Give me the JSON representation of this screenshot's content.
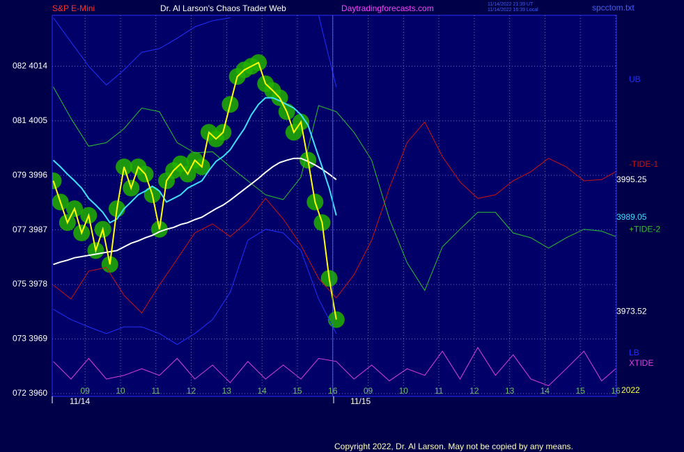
{
  "chart_data": {
    "type": "line",
    "symbol": "S&P E-Mini",
    "title": "Dr. Al Larson's Chaos Trader Web",
    "site": "Daytradingforecasts.com",
    "timestamps": [
      "11/14/2022 21:39 UT",
      "11/14/2022 16:39 Local"
    ],
    "file": "spcctom.txt",
    "dates": [
      "11/14",
      "11/15"
    ],
    "year": "2022",
    "copyright": "Copyright 2022, Dr. Al Larson. May not be copied by any means.",
    "xlim": [
      -0.93,
      15.02
    ],
    "ylim": [
      3960,
      4022.4
    ],
    "xticks": [
      {
        "value": 0,
        "label": "09"
      },
      {
        "value": 1,
        "label": "10"
      },
      {
        "value": 2,
        "label": "11"
      },
      {
        "value": 3,
        "label": "12"
      },
      {
        "value": 4,
        "label": "13"
      },
      {
        "value": 5,
        "label": "14"
      },
      {
        "value": 6,
        "label": "15"
      },
      {
        "value": 7,
        "label": "16"
      },
      {
        "value": 8,
        "label": "09"
      },
      {
        "value": 9,
        "label": "10"
      },
      {
        "value": 10,
        "label": "11"
      },
      {
        "value": 11,
        "label": "12"
      },
      {
        "value": 12,
        "label": "13"
      },
      {
        "value": 13,
        "label": "14"
      },
      {
        "value": 14,
        "label": "15"
      },
      {
        "value": 15,
        "label": "16"
      }
    ],
    "yticks": [
      {
        "value": 3960,
        "label": "072 3960"
      },
      {
        "value": 3969,
        "label": "073 3969"
      },
      {
        "value": 3978,
        "label": "075 3978"
      },
      {
        "value": 3987,
        "label": "077 3987"
      },
      {
        "value": 3996,
        "label": "079 3996"
      },
      {
        "value": 4005,
        "label": "081 4005"
      },
      {
        "value": 4014,
        "label": "082 4014"
      }
    ],
    "grid": true,
    "marker_color": "#22b000",
    "last_values": [
      3995.25,
      3989.05,
      3973.52
    ],
    "last_value_colors": [
      "#ffffff",
      "#40e0ff",
      "#ffffff"
    ],
    "series": [
      {
        "color": "#ffff00",
        "x": [
          -0.9,
          -0.7,
          -0.5,
          -0.3,
          -0.1,
          0.1,
          0.3,
          0.5,
          0.7,
          0.9,
          1.1,
          1.3,
          1.5,
          1.7,
          1.9,
          2.1,
          2.3,
          2.5,
          2.7,
          2.9,
          3.1,
          3.3,
          3.5,
          3.7,
          3.9,
          4.1,
          4.3,
          4.5,
          4.7,
          4.9,
          5.1,
          5.3,
          5.5,
          5.7,
          5.9,
          6.1,
          6.3,
          6.5,
          6.7,
          6.9,
          7.1
        ],
        "values": [
          3995.1,
          3991.6,
          3988.2,
          3990.5,
          3986.5,
          3989.4,
          3983.6,
          3987.1,
          3981.3,
          3990.5,
          3997.4,
          3993.9,
          3997.4,
          3996.2,
          3992.8,
          3987.1,
          3995.1,
          3996.8,
          3997.9,
          3996.2,
          3998.5,
          3997.4,
          4003.1,
          4002.0,
          4003.1,
          4007.7,
          4012.3,
          4013.4,
          4014.0,
          4014.6,
          4011.1,
          4010.0,
          4008.8,
          4006.5,
          4003.1,
          4004.8,
          3998.5,
          3991.6,
          3988.2,
          3979.0,
          3972.2
        ]
      },
      {
        "color": "#40e0ff",
        "x": [
          -0.9,
          -0.7,
          -0.5,
          -0.3,
          -0.1,
          0.1,
          0.3,
          0.5,
          0.7,
          0.9,
          1.1,
          1.3,
          1.5,
          1.7,
          1.9,
          2.1,
          2.3,
          2.5,
          2.7,
          2.9,
          3.1,
          3.3,
          3.5,
          3.7,
          3.9,
          4.1,
          4.3,
          4.5,
          4.7,
          4.9,
          5.1,
          5.3,
          5.5,
          5.7,
          5.9,
          6.1,
          6.3,
          6.5,
          6.7,
          6.9,
          7.1
        ],
        "values": [
          3998.5,
          3997.4,
          3996.2,
          3995.1,
          3993.9,
          3992.2,
          3991.1,
          3989.9,
          3988.2,
          3988.8,
          3990.5,
          3991.6,
          3992.8,
          3993.4,
          3994.2,
          3993.4,
          3991.6,
          3992.2,
          3992.8,
          3993.9,
          3994.5,
          3995.1,
          3996.8,
          3998.3,
          3999.1,
          4000.2,
          4002.0,
          4003.7,
          4006.0,
          4007.7,
          4008.8,
          4008.8,
          4008.3,
          4007.7,
          4007.1,
          4006.0,
          4004.3,
          4000.8,
          3997.4,
          3993.9,
          3989.4
        ]
      },
      {
        "color": "#ffffff",
        "x": [
          -0.9,
          -0.7,
          -0.5,
          -0.3,
          -0.1,
          0.1,
          0.3,
          0.5,
          0.7,
          0.9,
          1.1,
          1.3,
          1.5,
          1.7,
          1.9,
          2.1,
          2.3,
          2.5,
          2.7,
          2.9,
          3.1,
          3.3,
          3.5,
          3.7,
          3.9,
          4.1,
          4.3,
          4.5,
          4.7,
          4.9,
          5.1,
          5.3,
          5.5,
          5.7,
          5.9,
          6.1,
          6.3,
          6.5,
          6.7,
          6.9,
          7.1
        ],
        "values": [
          3981.3,
          3981.7,
          3982.0,
          3982.4,
          3982.6,
          3982.8,
          3983.0,
          3983.2,
          3983.4,
          3983.6,
          3984.2,
          3984.8,
          3985.2,
          3985.7,
          3986.1,
          3986.7,
          3987.1,
          3987.4,
          3987.9,
          3988.2,
          3988.7,
          3989.1,
          3989.8,
          3990.5,
          3991.1,
          3991.9,
          3992.8,
          3993.7,
          3994.6,
          3995.5,
          3996.5,
          3997.4,
          3998.1,
          3998.5,
          3998.8,
          3998.8,
          3998.3,
          3997.7,
          3997.0,
          3996.2,
          3995.3
        ]
      },
      {
        "name": "UB",
        "color": "#2030ff",
        "x": [
          -0.9,
          -0.4,
          0.1,
          0.6,
          1.1,
          1.6,
          2.1,
          2.6,
          3.1,
          3.6,
          4.1,
          4.6,
          5.1,
          5.6,
          6.1,
          6.6,
          7.1
        ],
        "values": [
          4022.0,
          4018.0,
          4014.0,
          4010.9,
          4013.4,
          4016.3,
          4016.9,
          4018.6,
          4020.5,
          4021.5,
          4022.0,
          null,
          null,
          null,
          null,
          4022.4,
          4010.6
        ]
      },
      {
        "name": "-TIDE-1",
        "color": "#d01010",
        "x": [
          -0.9,
          -0.4,
          0.1,
          0.6,
          1.1,
          1.6,
          2.1,
          2.6,
          3.1,
          3.6,
          4.1,
          4.6,
          5.1,
          5.6,
          6.1,
          6.6,
          7.1,
          7.6,
          8.1,
          8.6,
          9.1,
          9.6,
          10.1,
          10.6,
          11.1,
          11.6,
          12.1,
          12.6,
          13.1,
          13.6,
          14.1,
          14.6,
          15.0
        ],
        "values": [
          3977.9,
          3975.6,
          3980.2,
          3980.8,
          3976.2,
          3973.3,
          3977.9,
          3982.2,
          3986.5,
          3988.0,
          3985.9,
          3988.4,
          3992.2,
          3988.8,
          3984.5,
          3979.0,
          3975.8,
          3979.6,
          3985.3,
          3993.9,
          4001.4,
          4004.8,
          3999.1,
          3994.9,
          3992.2,
          3992.8,
          3995.1,
          3996.6,
          3998.8,
          3997.4,
          3995.1,
          3995.3,
          3996.6
        ]
      },
      {
        "name": "+TIDE-2",
        "color": "#30c030",
        "x": [
          -0.9,
          -0.4,
          0.1,
          0.6,
          1.1,
          1.6,
          2.1,
          2.6,
          3.1,
          3.6,
          4.1,
          4.6,
          5.1,
          5.6,
          6.1,
          6.6,
          7.1,
          7.6,
          8.1,
          8.6,
          9.1,
          9.6,
          10.1,
          10.6,
          11.1,
          11.6,
          12.1,
          12.6,
          13.1,
          13.6,
          14.1,
          14.6,
          15.0
        ],
        "values": [
          4010.6,
          4005.4,
          4000.8,
          4001.4,
          4003.7,
          4007.1,
          4006.5,
          4001.4,
          3999.7,
          3999.9,
          3997.4,
          3995.1,
          3992.8,
          3992.0,
          3995.7,
          4007.5,
          4006.5,
          4003.1,
          3998.5,
          3988.8,
          3981.6,
          3977.0,
          3984.2,
          3987.1,
          3989.9,
          3989.9,
          3986.5,
          3985.7,
          3984.0,
          3985.7,
          3987.1,
          3986.8,
          3985.9
        ]
      },
      {
        "name": "LB",
        "color": "#2030ff",
        "x": [
          -0.9,
          -0.4,
          0.1,
          0.6,
          1.1,
          1.6,
          2.1,
          2.6,
          3.1,
          3.6,
          4.1,
          4.6,
          5.1,
          5.6,
          6.1,
          6.6,
          7.1
        ],
        "values": [
          3973.9,
          3972.2,
          3971.0,
          3969.9,
          3971.0,
          3971.0,
          3969.9,
          3968.1,
          3969.9,
          3972.2,
          3976.7,
          3985.3,
          3987.1,
          3986.5,
          3983.6,
          3975.6,
          3969.9
        ]
      },
      {
        "name": "XTIDE",
        "color": "#e040e0",
        "x": [
          -0.9,
          -0.4,
          0.1,
          0.6,
          1.1,
          1.6,
          2.1,
          2.6,
          3.1,
          3.6,
          4.1,
          4.6,
          5.1,
          5.6,
          6.1,
          6.6,
          7.1,
          7.6,
          8.1,
          8.6,
          9.1,
          9.6,
          10.1,
          10.6,
          11.1,
          11.6,
          12.1,
          12.6,
          13.1,
          13.6,
          14.1,
          14.6,
          15.0
        ],
        "values": [
          3965.3,
          3962.4,
          3965.8,
          3962.4,
          3963.0,
          3964.1,
          3963.0,
          3965.8,
          3962.4,
          3964.7,
          3961.8,
          3965.3,
          3962.4,
          3964.7,
          3962.4,
          3965.8,
          3965.3,
          3962.4,
          3964.7,
          3962.1,
          3964.1,
          3963.0,
          3967.0,
          3962.4,
          3967.6,
          3963.0,
          3966.4,
          3962.4,
          3961.3,
          3964.1,
          3967.0,
          3962.1,
          3964.1
        ]
      }
    ]
  }
}
